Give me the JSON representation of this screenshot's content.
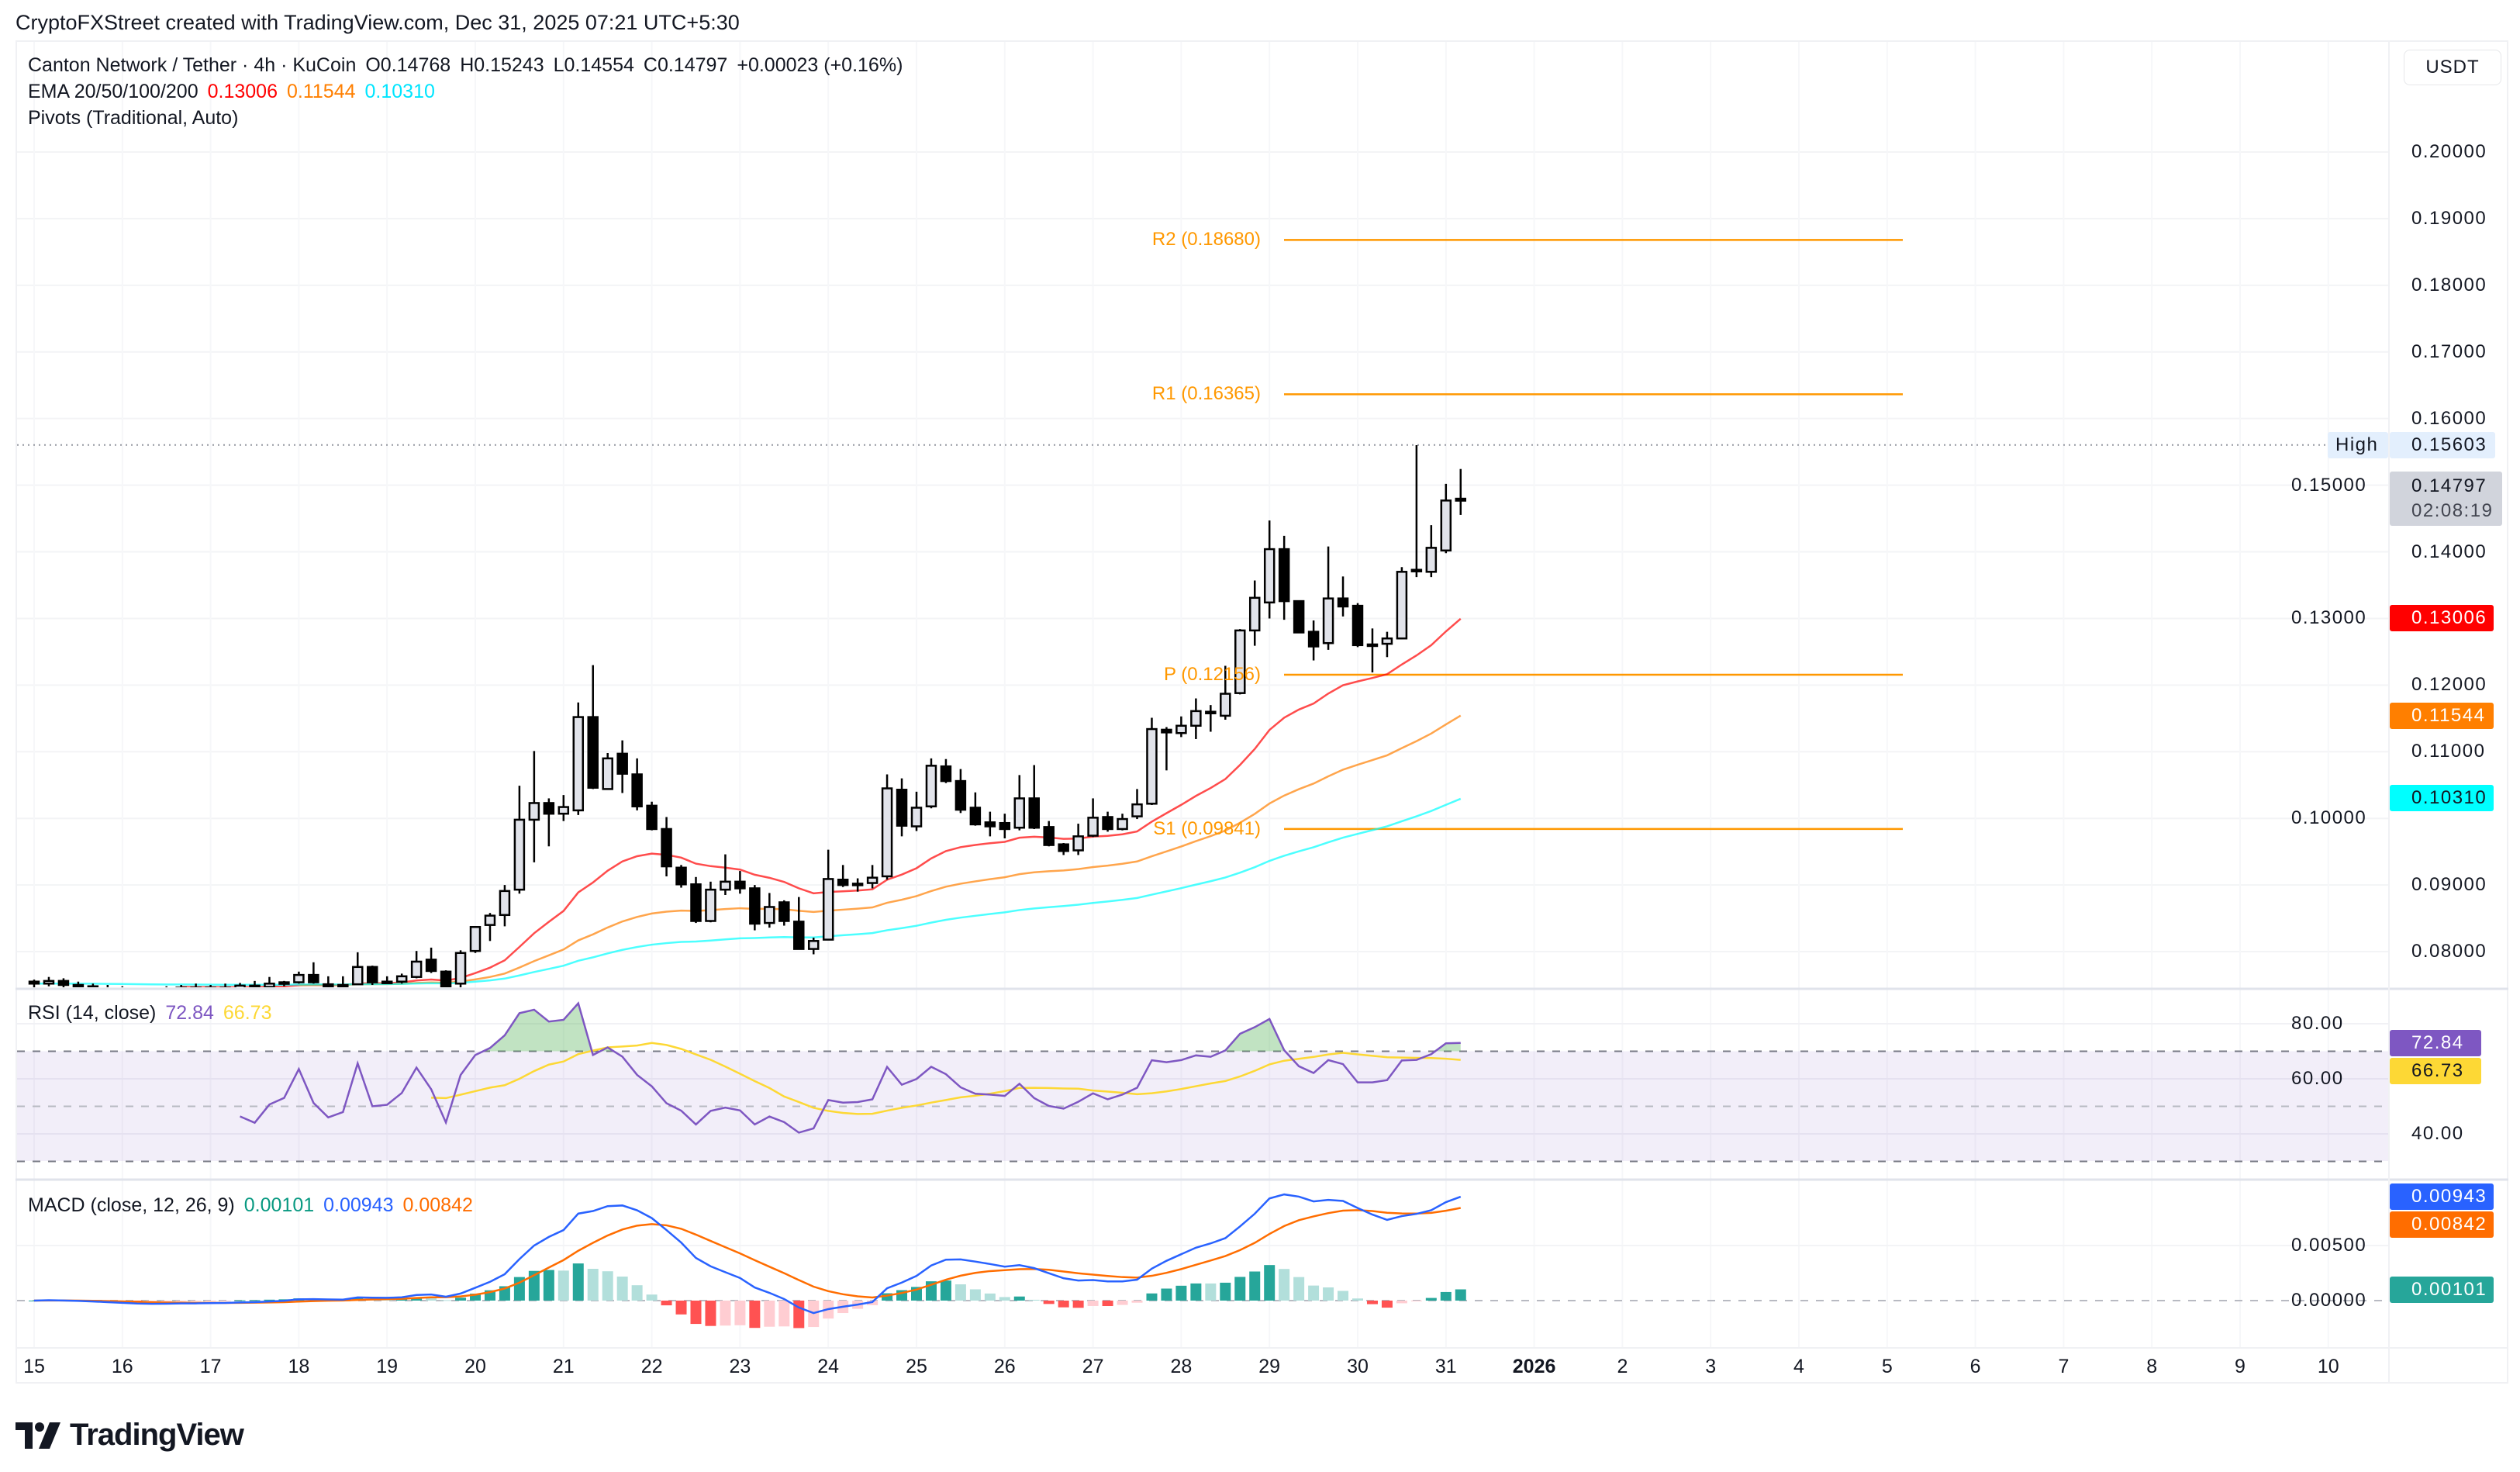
{
  "attribution": "CryptoFXStreet created with TradingView.com, Dec 31, 2025 07:21 UTC+5:30",
  "legend": {
    "symbol": "Canton Network / Tether · 4h · KuCoin",
    "open": "O0.14768",
    "high": "H0.15243",
    "low": "L0.14554",
    "close": "C0.14797",
    "change": "+0.00023 (+0.16%)",
    "ema_title": "EMA 20/50/100/200",
    "ema20": "0.13006",
    "ema50": "0.11544",
    "ema100": "0.10310",
    "pivots_title": "Pivots (Traditional, Auto)",
    "rsi_title": "RSI (14, close)",
    "rsi_value": "72.84",
    "rsi_ma_value": "66.73",
    "macd_title": "MACD (close, 12, 26, 9)",
    "macd_hist": "0.00101",
    "macd_line": "0.00943",
    "macd_signal": "0.00842"
  },
  "currency_button": "USDT",
  "logo_text": "TradingView",
  "colors": {
    "ema20": "#FF0000",
    "ema50": "#FF7F00",
    "ema100": "#00FFFF",
    "pivot": "#FF9800",
    "rsi": "#7E57C2",
    "rsi_ma": "#FDD835",
    "macd": "#2962FF",
    "signal": "#FF6D00",
    "hist_up": "#26A69A",
    "hist_up_fading": "#B2DFDB",
    "hist_down": "#FF5252",
    "hist_down_fading": "#FFCDD2"
  },
  "axis_labels": {
    "high_tag": "High",
    "high_value": "0.15603",
    "last_price": "0.14797",
    "countdown": "02:08:19",
    "ema20": "0.13006",
    "ema50": "0.11544",
    "ema100": "0.10310",
    "rsi": "72.84",
    "rsi_ma": "66.73",
    "macd": "0.00943",
    "signal": "0.00842",
    "hist": "0.00101"
  },
  "chart_data": {
    "type": "candlestick",
    "interval": "4h",
    "price_ticks": [
      "0.20000",
      "0.19000",
      "0.18000",
      "0.17000",
      "0.16000",
      "0.15000",
      "0.14000",
      "0.13000",
      "0.12000",
      "0.11000",
      "0.10000",
      "0.09000",
      "0.08000"
    ],
    "rsi_ticks": [
      "80.00",
      "60.00",
      "40.00"
    ],
    "macd_ticks": [
      "0.00500",
      "0.00000"
    ],
    "time_labels": [
      "15",
      "16",
      "17",
      "18",
      "19",
      "20",
      "21",
      "22",
      "23",
      "24",
      "25",
      "26",
      "27",
      "28",
      "29",
      "30",
      "31",
      "2026",
      "2",
      "3",
      "4",
      "5",
      "6",
      "7",
      "8",
      "9",
      "10"
    ],
    "pivots": [
      {
        "label": "R2 (0.18680)",
        "value": 0.1868
      },
      {
        "label": "R1 (0.16365)",
        "value": 0.16365
      },
      {
        "label": "P (0.12156)",
        "value": 0.12156
      },
      {
        "label": "S1 (0.09841)",
        "value": 0.09841
      }
    ],
    "high_value": 0.15603,
    "last_value": 0.14797,
    "ema_last": [
      0.13006,
      0.11544,
      0.1031
    ],
    "rsi_last": [
      72.84,
      66.73
    ],
    "macd_last": [
      0.00943,
      0.00842,
      0.00101
    ],
    "rsi_bands": [
      70,
      50,
      30
    ],
    "candles_columns": [
      "time",
      "open",
      "high",
      "low",
      "close"
    ],
    "candles": [
      [
        "Dec 15 00:00",
        0.0755,
        0.0758,
        0.0745,
        0.0752
      ],
      [
        "Dec 15 04:00",
        0.0752,
        0.0762,
        0.0748,
        0.0756
      ],
      [
        "Dec 15 08:00",
        0.0756,
        0.076,
        0.0746,
        0.075
      ],
      [
        "Dec 15 12:00",
        0.075,
        0.0755,
        0.0742,
        0.0748
      ],
      [
        "Dec 15 16:00",
        0.0748,
        0.0752,
        0.074,
        0.0745
      ],
      [
        "Dec 15 20:00",
        0.0745,
        0.075,
        0.0738,
        0.0742
      ],
      [
        "Dec 16 00:00",
        0.0742,
        0.0748,
        0.0735,
        0.074
      ],
      [
        "Dec 16 04:00",
        0.074,
        0.0746,
        0.0733,
        0.0738
      ],
      [
        "Dec 16 08:00",
        0.0738,
        0.0745,
        0.0732,
        0.0741
      ],
      [
        "Dec 16 12:00",
        0.0741,
        0.0748,
        0.0736,
        0.0744
      ],
      [
        "Dec 16 16:00",
        0.0744,
        0.075,
        0.0738,
        0.0746
      ],
      [
        "Dec 16 20:00",
        0.0746,
        0.0752,
        0.074,
        0.0743
      ],
      [
        "Dec 17 00:00",
        0.0743,
        0.075,
        0.0738,
        0.0746
      ],
      [
        "Dec 17 04:00",
        0.0746,
        0.0752,
        0.074,
        0.0745
      ],
      [
        "Dec 17 08:00",
        0.0745,
        0.0753,
        0.0741,
        0.0749
      ],
      [
        "Dec 17 12:00",
        0.0749,
        0.0756,
        0.0744,
        0.0747
      ],
      [
        "Dec 17 16:00",
        0.0747,
        0.0762,
        0.0745,
        0.0752
      ],
      [
        "Dec 17 20:00",
        0.0752,
        0.0756,
        0.0748,
        0.0754
      ],
      [
        "Dec 18 00:00",
        0.0754,
        0.077,
        0.0752,
        0.0765
      ],
      [
        "Dec 18 04:00",
        0.0765,
        0.0784,
        0.0752,
        0.0754
      ],
      [
        "Dec 18 08:00",
        0.0751,
        0.0763,
        0.0746,
        0.0748
      ],
      [
        "Dec 18 12:00",
        0.075,
        0.0763,
        0.0746,
        0.075
      ],
      [
        "Dec 18 16:00",
        0.0751,
        0.0799,
        0.075,
        0.0777
      ],
      [
        "Dec 18 20:00",
        0.0777,
        0.0779,
        0.075,
        0.0754
      ],
      [
        "Dec 19 00:00",
        0.0755,
        0.0763,
        0.0752,
        0.0755
      ],
      [
        "Dec 19 04:00",
        0.0755,
        0.0767,
        0.0752,
        0.0763
      ],
      [
        "Dec 19 08:00",
        0.0762,
        0.0801,
        0.076,
        0.0785
      ],
      [
        "Dec 19 12:00",
        0.0788,
        0.0806,
        0.0768,
        0.0771
      ],
      [
        "Dec 19 16:00",
        0.077,
        0.0772,
        0.0738,
        0.0742
      ],
      [
        "Dec 19 20:00",
        0.0752,
        0.0802,
        0.0742,
        0.0798
      ],
      [
        "Dec 20 00:00",
        0.0801,
        0.0838,
        0.0798,
        0.0837
      ],
      [
        "Dec 20 04:00",
        0.084,
        0.0858,
        0.0816,
        0.0854
      ],
      [
        "Dec 20 08:00",
        0.0855,
        0.09,
        0.0838,
        0.0891
      ],
      [
        "Dec 20 12:00",
        0.0893,
        0.1049,
        0.0887,
        0.0998
      ],
      [
        "Dec 20 16:00",
        0.0998,
        0.1101,
        0.0934,
        0.1023
      ],
      [
        "Dec 20 20:00",
        0.1023,
        0.103,
        0.0958,
        0.1007
      ],
      [
        "Dec 21 00:00",
        0.1007,
        0.1035,
        0.0996,
        0.1017
      ],
      [
        "Dec 21 04:00",
        0.1012,
        0.1174,
        0.1005,
        0.1152
      ],
      [
        "Dec 21 08:00",
        0.1152,
        0.123,
        0.1044,
        0.1046
      ],
      [
        "Dec 21 12:00",
        0.1044,
        0.1098,
        0.1043,
        0.109
      ],
      [
        "Dec 21 16:00",
        0.1097,
        0.1117,
        0.1038,
        0.1067
      ],
      [
        "Dec 21 20:00",
        0.1066,
        0.109,
        0.1012,
        0.1018
      ],
      [
        "Dec 22 00:00",
        0.1019,
        0.1025,
        0.0982,
        0.0984
      ],
      [
        "Dec 22 04:00",
        0.0984,
        0.1002,
        0.0913,
        0.0928
      ],
      [
        "Dec 22 08:00",
        0.0926,
        0.093,
        0.0896,
        0.0901
      ],
      [
        "Dec 22 12:00",
        0.0901,
        0.0912,
        0.0843,
        0.0846
      ],
      [
        "Dec 22 16:00",
        0.0846,
        0.0905,
        0.0844,
        0.0893
      ],
      [
        "Dec 22 20:00",
        0.0893,
        0.0946,
        0.0885,
        0.0905
      ],
      [
        "Dec 23 00:00",
        0.0905,
        0.0921,
        0.0887,
        0.0895
      ],
      [
        "Dec 23 04:00",
        0.0895,
        0.09,
        0.0832,
        0.0842
      ],
      [
        "Dec 23 08:00",
        0.0843,
        0.0888,
        0.0836,
        0.0867
      ],
      [
        "Dec 23 12:00",
        0.0874,
        0.0877,
        0.0839,
        0.0846
      ],
      [
        "Dec 23 16:00",
        0.0845,
        0.0882,
        0.0803,
        0.0804
      ],
      [
        "Dec 23 20:00",
        0.0804,
        0.0821,
        0.0796,
        0.0816
      ],
      [
        "Dec 24 00:00",
        0.0818,
        0.0953,
        0.0817,
        0.0909
      ],
      [
        "Dec 24 04:00",
        0.0908,
        0.093,
        0.0897,
        0.09
      ],
      [
        "Dec 24 08:00",
        0.09,
        0.091,
        0.089,
        0.0902
      ],
      [
        "Dec 24 12:00",
        0.0903,
        0.093,
        0.0895,
        0.0911
      ],
      [
        "Dec 24 16:00",
        0.0913,
        0.1066,
        0.0908,
        0.1045
      ],
      [
        "Dec 24 20:00",
        0.1043,
        0.106,
        0.0973,
        0.0989
      ],
      [
        "Dec 25 00:00",
        0.0988,
        0.104,
        0.0981,
        0.1016
      ],
      [
        "Dec 25 04:00",
        0.1018,
        0.109,
        0.1015,
        0.1079
      ],
      [
        "Dec 25 08:00",
        0.1078,
        0.1089,
        0.1053,
        0.1056
      ],
      [
        "Dec 25 12:00",
        0.1056,
        0.1074,
        0.1008,
        0.1013
      ],
      [
        "Dec 25 16:00",
        0.1016,
        0.1039,
        0.0989,
        0.0991
      ],
      [
        "Dec 25 20:00",
        0.0994,
        0.101,
        0.0973,
        0.0988
      ],
      [
        "Dec 26 00:00",
        0.0993,
        0.1007,
        0.097,
        0.0984
      ],
      [
        "Dec 26 04:00",
        0.0986,
        0.1065,
        0.0982,
        0.103
      ],
      [
        "Dec 26 08:00",
        0.103,
        0.108,
        0.0984,
        0.0986
      ],
      [
        "Dec 26 12:00",
        0.0987,
        0.0996,
        0.0958,
        0.096
      ],
      [
        "Dec 26 16:00",
        0.0961,
        0.0963,
        0.0945,
        0.0951
      ],
      [
        "Dec 26 20:00",
        0.0952,
        0.0992,
        0.0945,
        0.0973
      ],
      [
        "Dec 27 00:00",
        0.0974,
        0.103,
        0.0972,
        0.1001
      ],
      [
        "Dec 27 04:00",
        0.1002,
        0.101,
        0.098,
        0.0984
      ],
      [
        "Dec 27 08:00",
        0.0984,
        0.1007,
        0.0982,
        0.0999
      ],
      [
        "Dec 27 12:00",
        0.1003,
        0.1044,
        0.0999,
        0.1021
      ],
      [
        "Dec 27 16:00",
        0.1022,
        0.1151,
        0.102,
        0.1134
      ],
      [
        "Dec 27 20:00",
        0.1133,
        0.1137,
        0.1072,
        0.1129
      ],
      [
        "Dec 28 00:00",
        0.1128,
        0.1153,
        0.1122,
        0.1139
      ],
      [
        "Dec 28 04:00",
        0.1139,
        0.118,
        0.1119,
        0.1161
      ],
      [
        "Dec 28 08:00",
        0.116,
        0.117,
        0.113,
        0.1158
      ],
      [
        "Dec 28 12:00",
        0.1154,
        0.1229,
        0.1148,
        0.1187
      ],
      [
        "Dec 28 16:00",
        0.1188,
        0.1284,
        0.1186,
        0.1282
      ],
      [
        "Dec 28 20:00",
        0.1282,
        0.1357,
        0.1259,
        0.1331
      ],
      [
        "Dec 29 00:00",
        0.1324,
        0.1447,
        0.13,
        0.1404
      ],
      [
        "Dec 29 04:00",
        0.1404,
        0.1424,
        0.1298,
        0.1326
      ],
      [
        "Dec 29 08:00",
        0.1326,
        0.1327,
        0.1279,
        0.1279
      ],
      [
        "Dec 29 12:00",
        0.128,
        0.1297,
        0.1237,
        0.1258
      ],
      [
        "Dec 29 16:00",
        0.1263,
        0.1408,
        0.1253,
        0.133
      ],
      [
        "Dec 29 20:00",
        0.133,
        0.1363,
        0.1303,
        0.1318
      ],
      [
        "Dec 30 00:00",
        0.1319,
        0.1323,
        0.1257,
        0.126
      ],
      [
        "Dec 30 04:00",
        0.1261,
        0.1285,
        0.1219,
        0.126
      ],
      [
        "Dec 30 08:00",
        0.1262,
        0.128,
        0.1242,
        0.127
      ],
      [
        "Dec 30 12:00",
        0.127,
        0.1377,
        0.1269,
        0.137
      ],
      [
        "Dec 30 16:00",
        0.1372,
        0.156,
        0.1362,
        0.1373
      ],
      [
        "Dec 30 20:00",
        0.137,
        0.144,
        0.1362,
        0.1406
      ],
      [
        "Dec 31 00:00",
        0.1402,
        0.1502,
        0.1398,
        0.1477
      ],
      [
        "Dec 31 04:00",
        0.14768,
        0.15243,
        0.14554,
        0.14797
      ]
    ]
  }
}
